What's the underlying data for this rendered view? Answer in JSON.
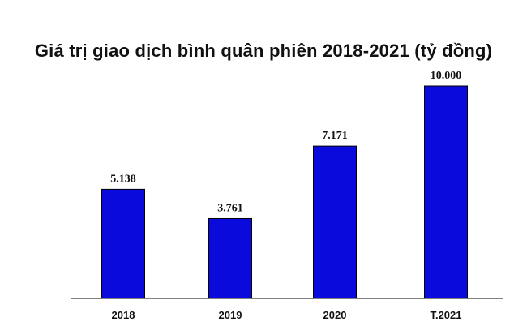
{
  "chart_data": {
    "type": "bar",
    "title": "Giá trị giao dịch bình quân phiên 2018-2021 (tỷ đồng)",
    "categories": [
      "2018",
      "2019",
      "2020",
      "T.2021"
    ],
    "values": [
      5138,
      3761,
      7171,
      10000
    ],
    "value_labels": [
      "5.138",
      "3.761",
      "7.171",
      "10.000"
    ],
    "xlabel": "",
    "ylabel": "",
    "ylim": [
      0,
      10000
    ],
    "grid": false,
    "legend": "none",
    "bar_color": "#0a0adc"
  }
}
